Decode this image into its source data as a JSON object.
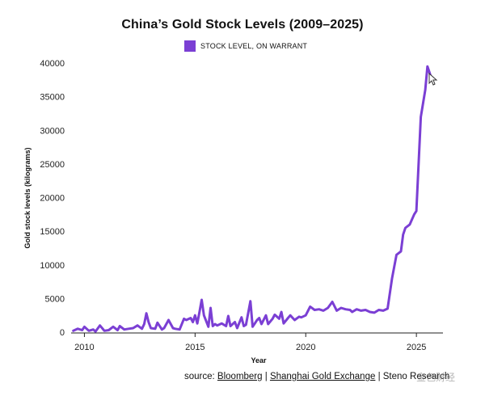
{
  "chart_data": {
    "type": "line",
    "title": "China’s Gold Stock Levels (2009–2025)",
    "xlabel": "Year",
    "ylabel": "Gold stock levels (kilograms)",
    "xlim": [
      2009.4,
      2026.2
    ],
    "ylim": [
      0,
      40000
    ],
    "x_ticks": [
      2010,
      2015,
      2020,
      2025
    ],
    "y_ticks": [
      0,
      5000,
      10000,
      15000,
      20000,
      25000,
      30000,
      35000,
      40000
    ],
    "grid": false,
    "legend_position": "top-center",
    "series": [
      {
        "name": "STOCK LEVEL, ON WARRANT",
        "color": "#7b3fd4",
        "x": [
          2009.5,
          2009.7,
          2009.9,
          2010.0,
          2010.2,
          2010.4,
          2010.5,
          2010.7,
          2010.9,
          2011.1,
          2011.3,
          2011.5,
          2011.6,
          2011.8,
          2012.0,
          2012.2,
          2012.4,
          2012.6,
          2012.7,
          2012.8,
          2012.9,
          2013.0,
          2013.2,
          2013.3,
          2013.5,
          2013.6,
          2013.8,
          2014.0,
          2014.1,
          2014.3,
          2014.5,
          2014.6,
          2014.8,
          2014.9,
          2015.0,
          2015.1,
          2015.2,
          2015.3,
          2015.4,
          2015.6,
          2015.7,
          2015.8,
          2015.9,
          2016.0,
          2016.2,
          2016.4,
          2016.5,
          2016.6,
          2016.8,
          2016.9,
          2017.1,
          2017.2,
          2017.3,
          2017.5,
          2017.6,
          2017.7,
          2017.8,
          2017.9,
          2018.0,
          2018.2,
          2018.3,
          2018.5,
          2018.6,
          2018.8,
          2018.9,
          2019.0,
          2019.2,
          2019.3,
          2019.5,
          2019.7,
          2019.8,
          2020.0,
          2020.2,
          2020.4,
          2020.6,
          2020.8,
          2021.0,
          2021.2,
          2021.4,
          2021.6,
          2021.8,
          2022.0,
          2022.1,
          2022.3,
          2022.5,
          2022.7,
          2022.9,
          2023.1,
          2023.3,
          2023.5,
          2023.7,
          2023.9,
          2024.1,
          2024.3,
          2024.4,
          2024.5,
          2024.7,
          2024.9,
          2025.0,
          2025.2,
          2025.4,
          2025.5,
          2025.6,
          2025.65,
          2025.7
        ],
        "values": [
          200,
          500,
          300,
          800,
          200,
          400,
          100,
          1000,
          200,
          300,
          800,
          300,
          900,
          400,
          500,
          600,
          1000,
          500,
          1200,
          2800,
          1500,
          600,
          500,
          1400,
          400,
          600,
          1800,
          600,
          500,
          400,
          2000,
          1800,
          2100,
          1500,
          2500,
          1300,
          3000,
          4800,
          2500,
          800,
          3600,
          900,
          1200,
          1000,
          1300,
          900,
          2400,
          900,
          1500,
          600,
          2200,
          900,
          1100,
          4600,
          800,
          1300,
          1800,
          2100,
          1200,
          2500,
          1200,
          2000,
          2600,
          2000,
          3000,
          1300,
          2100,
          2500,
          1800,
          2300,
          2200,
          2500,
          3800,
          3300,
          3400,
          3200,
          3600,
          4500,
          3200,
          3600,
          3400,
          3300,
          3000,
          3400,
          3200,
          3300,
          3000,
          2900,
          3300,
          3200,
          3500,
          8000,
          11500,
          12000,
          14500,
          15500,
          16000,
          17500,
          18000,
          32000,
          36000,
          39500,
          38500,
          38000,
          37500
        ]
      }
    ]
  },
  "source": {
    "prefix": "source: ",
    "bloomberg": "Bloomberg",
    "sep1": " | ",
    "sge": "Shanghai Gold Exchange",
    "sep2": " | ",
    "steno": "Steno Research"
  },
  "watermark": "金色财经"
}
